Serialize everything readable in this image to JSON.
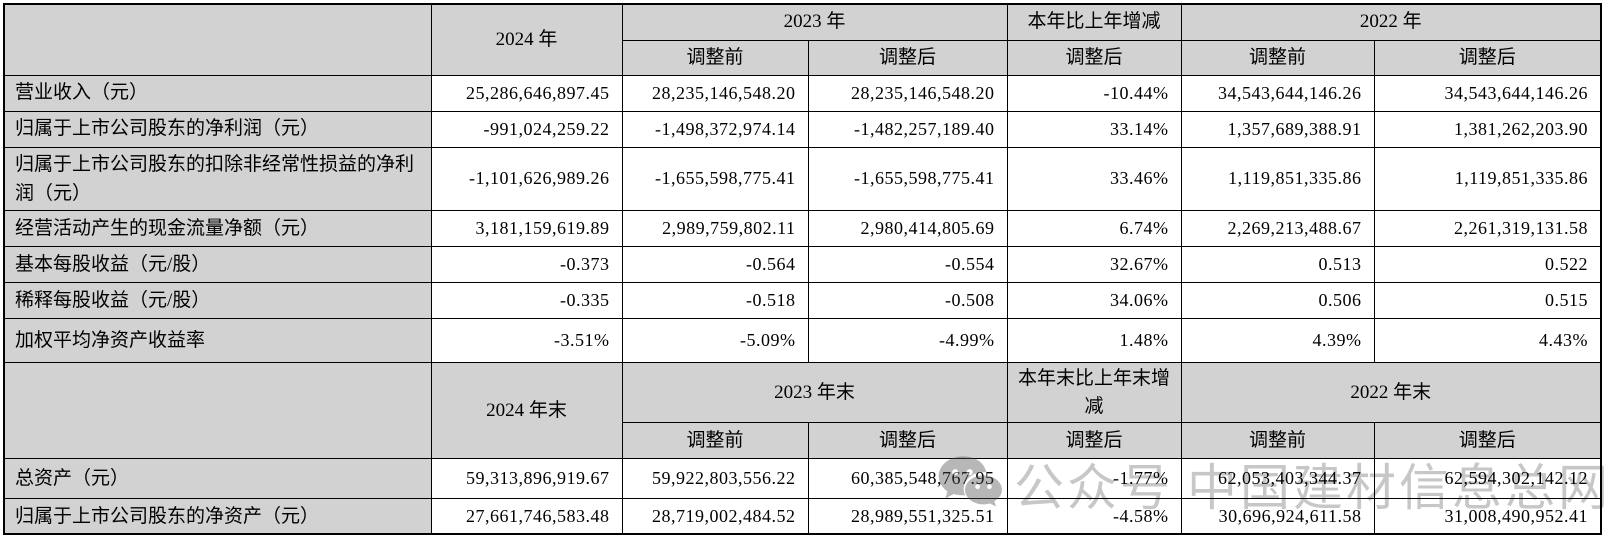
{
  "watermark": {
    "icon": "wechat-icon",
    "prefix": "公众号",
    "name": "中国建材信息总网"
  },
  "colors": {
    "header_bg": "#d2d2d2",
    "label_bg": "#d2d2d2",
    "cell_bg": "#ffffff",
    "border": "#000000",
    "watermark_text": "rgba(0,0,0,0.22)"
  },
  "table": {
    "sections": [
      {
        "corner_label": "",
        "col_current": "2024 年",
        "col_prev_group": "2023 年",
        "col_change_group": "本年比上年增减",
        "col_prev2_group": "2022 年",
        "sub_adjust_before": "调整前",
        "sub_adjust_after": "调整后",
        "sub_change": "调整后",
        "rows": [
          {
            "label": "营业收入（元）",
            "values": [
              "25,286,646,897.45",
              "28,235,146,548.20",
              "28,235,146,548.20",
              "-10.44%",
              "34,543,644,146.26",
              "34,543,644,146.26"
            ]
          },
          {
            "label": "归属于上市公司股东的净利润（元）",
            "values": [
              "-991,024,259.22",
              "-1,498,372,974.14",
              "-1,482,257,189.40",
              "33.14%",
              "1,357,689,388.91",
              "1,381,262,203.90"
            ]
          },
          {
            "label": "归属于上市公司股东的扣除非经常性损益的净利润（元）",
            "values": [
              "-1,101,626,989.26",
              "-1,655,598,775.41",
              "-1,655,598,775.41",
              "33.46%",
              "1,119,851,335.86",
              "1,119,851,335.86"
            ]
          },
          {
            "label": "经营活动产生的现金流量净额（元）",
            "values": [
              "3,181,159,619.89",
              "2,989,759,802.11",
              "2,980,414,805.69",
              "6.74%",
              "2,269,213,488.67",
              "2,261,319,131.58"
            ]
          },
          {
            "label": "基本每股收益（元/股）",
            "values": [
              "-0.373",
              "-0.564",
              "-0.554",
              "32.67%",
              "0.513",
              "0.522"
            ]
          },
          {
            "label": "稀释每股收益（元/股）",
            "values": [
              "-0.335",
              "-0.518",
              "-0.508",
              "34.06%",
              "0.506",
              "0.515"
            ]
          },
          {
            "label": "加权平均净资产收益率",
            "values": [
              "-3.51%",
              "-5.09%",
              "-4.99%",
              "1.48%",
              "4.39%",
              "4.43%"
            ]
          }
        ]
      },
      {
        "corner_label": "",
        "col_current": "2024 年末",
        "col_prev_group": "2023 年末",
        "col_change_group": "本年末比上年末增减",
        "col_prev2_group": "2022 年末",
        "sub_adjust_before": "调整前",
        "sub_adjust_after": "调整后",
        "sub_change": "调整后",
        "rows": [
          {
            "label": "总资产（元）",
            "values": [
              "59,313,896,919.67",
              "59,922,803,556.22",
              "60,385,548,767.95",
              "-1.77%",
              "62,053,403,344.37",
              "62,594,302,142.12"
            ]
          },
          {
            "label": "归属于上市公司股东的净资产（元）",
            "values": [
              "27,661,746,583.48",
              "28,719,002,484.52",
              "28,989,551,325.51",
              "-4.58%",
              "30,696,924,611.58",
              "31,008,490,952.41"
            ]
          }
        ]
      }
    ]
  }
}
